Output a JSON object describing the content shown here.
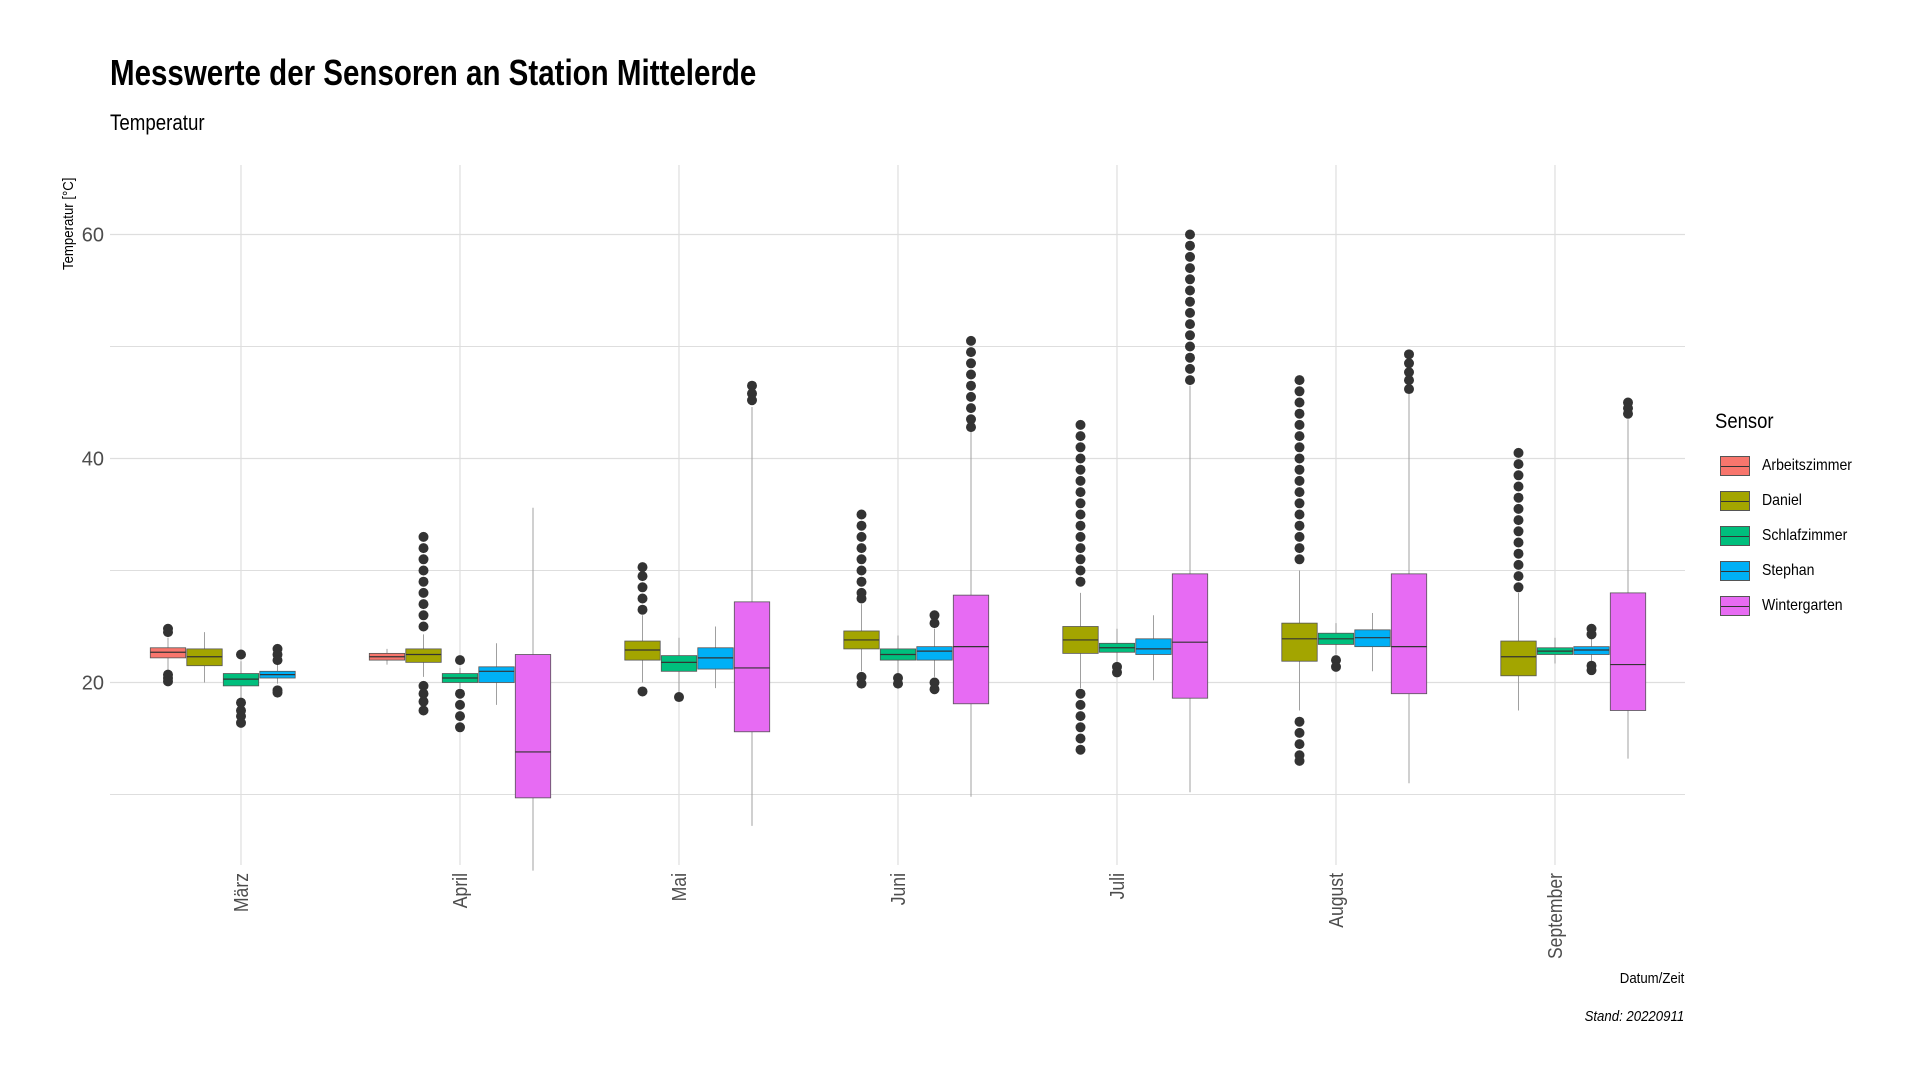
{
  "chart_data": {
    "type": "boxplot",
    "title": "Messwerte der Sensoren an Station Mittelerde",
    "subtitle": "Temperatur",
    "xlabel": "Datum/Zeit",
    "ylabel": "Temperatur [°C]",
    "caption": "Stand: 20220911",
    "ylim": [
      -0.5,
      63
    ],
    "yticks": [
      20,
      40,
      60
    ],
    "grid": true,
    "legend_title": "Sensor",
    "legend_position": "right",
    "categories": [
      "März",
      "April",
      "Mai",
      "Juni",
      "Juli",
      "August",
      "September"
    ],
    "series": [
      {
        "name": "Arbeitszimmer",
        "color": "#F8766D",
        "boxes": [
          {
            "category": "März",
            "q1": 22.2,
            "median": 22.7,
            "q3": 23.1,
            "lo": 21.1,
            "hi": 24.0,
            "outliers": [
              24.5,
              24.8,
              20.7,
              20.4,
              20.1
            ]
          },
          {
            "category": "April",
            "q1": 22.0,
            "median": 22.3,
            "q3": 22.6,
            "lo": 21.6,
            "hi": 23.0,
            "outliers": []
          }
        ]
      },
      {
        "name": "Daniel",
        "color": "#A3A500",
        "boxes": [
          {
            "category": "März",
            "q1": 21.5,
            "median": 22.3,
            "q3": 23.0,
            "lo": 20.0,
            "hi": 24.5,
            "outliers": []
          },
          {
            "category": "April",
            "q1": 21.8,
            "median": 22.5,
            "q3": 23.0,
            "lo": 20.5,
            "hi": 24.3,
            "outliers": [
              33,
              32,
              31,
              30,
              29,
              28,
              27,
              26,
              25,
              19.7,
              19,
              18.3,
              17.5
            ]
          },
          {
            "category": "Mai",
            "q1": 22.0,
            "median": 22.9,
            "q3": 23.7,
            "lo": 20.0,
            "hi": 26.0,
            "outliers": [
              30.3,
              29.5,
              28.5,
              27.5,
              26.5,
              19.2
            ]
          },
          {
            "category": "Juni",
            "q1": 23.0,
            "median": 23.8,
            "q3": 24.6,
            "lo": 21.0,
            "hi": 27.0,
            "outliers": [
              35,
              34,
              33,
              32,
              31,
              30,
              29,
              28,
              27.5,
              20.5,
              19.9
            ]
          },
          {
            "category": "Juli",
            "q1": 22.6,
            "median": 23.8,
            "q3": 25.0,
            "lo": 19.5,
            "hi": 28.0,
            "outliers": [
              43,
              42,
              41,
              40,
              39,
              38,
              37,
              36,
              35,
              34,
              33,
              32,
              31,
              30,
              29,
              19,
              18,
              17,
              16,
              15,
              14
            ]
          },
          {
            "category": "August",
            "q1": 21.9,
            "median": 23.9,
            "q3": 25.3,
            "lo": 17.5,
            "hi": 30.0,
            "outliers": [
              47,
              46,
              45,
              44,
              43,
              42,
              41,
              40,
              39,
              38,
              37,
              36,
              35,
              34,
              33,
              32,
              31,
              16.5,
              15.5,
              14.5,
              13.5,
              13.0
            ]
          },
          {
            "category": "September",
            "q1": 20.6,
            "median": 22.3,
            "q3": 23.7,
            "lo": 17.5,
            "hi": 28.0,
            "outliers": [
              40.5,
              39.5,
              38.5,
              37.5,
              36.5,
              35.5,
              34.5,
              33.5,
              32.5,
              31.5,
              30.5,
              29.5,
              28.5
            ]
          }
        ]
      },
      {
        "name": "Schlafzimmer",
        "color": "#00BF7D",
        "boxes": [
          {
            "category": "März",
            "q1": 19.7,
            "median": 20.3,
            "q3": 20.8,
            "lo": 18.6,
            "hi": 21.9,
            "outliers": [
              22.5,
              18.2,
              17.5,
              17.0,
              16.4
            ]
          },
          {
            "category": "April",
            "q1": 20.0,
            "median": 20.4,
            "q3": 20.8,
            "lo": 19.5,
            "hi": 21.3,
            "outliers": [
              22.0,
              19.0,
              18.0,
              17.0,
              16.0
            ]
          },
          {
            "category": "Mai",
            "q1": 21.0,
            "median": 21.8,
            "q3": 22.4,
            "lo": 19.0,
            "hi": 24.0,
            "outliers": [
              18.7
            ]
          },
          {
            "category": "Juni",
            "q1": 22.0,
            "median": 22.5,
            "q3": 23.0,
            "lo": 20.8,
            "hi": 24.2,
            "outliers": [
              20.4,
              19.9
            ]
          },
          {
            "category": "Juli",
            "q1": 22.7,
            "median": 23.1,
            "q3": 23.5,
            "lo": 21.8,
            "hi": 24.8,
            "outliers": [
              21.4,
              20.9
            ]
          },
          {
            "category": "August",
            "q1": 23.4,
            "median": 23.9,
            "q3": 24.4,
            "lo": 22.5,
            "hi": 25.3,
            "outliers": [
              22.0,
              21.4
            ]
          },
          {
            "category": "September",
            "q1": 22.5,
            "median": 22.8,
            "q3": 23.1,
            "lo": 21.7,
            "hi": 24.0,
            "outliers": []
          }
        ]
      },
      {
        "name": "Stephan",
        "color": "#00B0F6",
        "boxes": [
          {
            "category": "März",
            "q1": 20.4,
            "median": 20.7,
            "q3": 21.0,
            "lo": 19.9,
            "hi": 21.8,
            "outliers": [
              23.0,
              22.5,
              22.0,
              19.3,
              19.1
            ]
          },
          {
            "category": "April",
            "q1": 20.0,
            "median": 21.0,
            "q3": 21.4,
            "lo": 18.0,
            "hi": 23.5,
            "outliers": []
          },
          {
            "category": "Mai",
            "q1": 21.2,
            "median": 22.2,
            "q3": 23.1,
            "lo": 19.5,
            "hi": 25.0,
            "outliers": []
          },
          {
            "category": "Juni",
            "q1": 22.0,
            "median": 22.8,
            "q3": 23.2,
            "lo": 20.5,
            "hi": 24.8,
            "outliers": [
              26.0,
              25.3,
              20.0,
              19.4
            ]
          },
          {
            "category": "Juli",
            "q1": 22.5,
            "median": 23.0,
            "q3": 23.9,
            "lo": 20.2,
            "hi": 26.0,
            "outliers": []
          },
          {
            "category": "August",
            "q1": 23.2,
            "median": 24.0,
            "q3": 24.7,
            "lo": 21.0,
            "hi": 26.2,
            "outliers": []
          },
          {
            "category": "September",
            "q1": 22.5,
            "median": 22.9,
            "q3": 23.2,
            "lo": 21.8,
            "hi": 24.0,
            "outliers": [
              24.8,
              24.3,
              21.5,
              21.1
            ]
          }
        ]
      },
      {
        "name": "Wintergarten",
        "color": "#E76BF3",
        "boxes": [
          {
            "category": "April",
            "q1": 9.7,
            "median": 13.8,
            "q3": 22.5,
            "lo": 3.2,
            "hi": 35.6,
            "outliers": []
          },
          {
            "category": "Mai",
            "q1": 15.6,
            "median": 21.3,
            "q3": 27.2,
            "lo": 7.2,
            "hi": 44.6,
            "outliers": [
              46.5,
              45.8,
              45.2
            ]
          },
          {
            "category": "Juni",
            "q1": 18.1,
            "median": 23.2,
            "q3": 27.8,
            "lo": 9.8,
            "hi": 42.5,
            "outliers": [
              50.5,
              49.5,
              48.5,
              47.5,
              46.5,
              45.5,
              44.5,
              43.5,
              42.8
            ]
          },
          {
            "category": "Juli",
            "q1": 18.6,
            "median": 23.6,
            "q3": 29.7,
            "lo": 10.2,
            "hi": 46.5,
            "outliers": [
              60,
              59,
              58,
              57,
              56,
              55,
              54,
              53,
              52,
              51,
              50,
              49,
              48,
              47
            ]
          },
          {
            "category": "August",
            "q1": 19.0,
            "median": 23.2,
            "q3": 29.7,
            "lo": 11.0,
            "hi": 45.8,
            "outliers": [
              49.3,
              48.5,
              47.7,
              47.0,
              46.2
            ]
          },
          {
            "category": "September",
            "q1": 17.5,
            "median": 21.6,
            "q3": 28.0,
            "lo": 13.2,
            "hi": 43.5,
            "outliers": [
              45.0,
              44.5,
              44.0
            ]
          }
        ]
      }
    ]
  }
}
